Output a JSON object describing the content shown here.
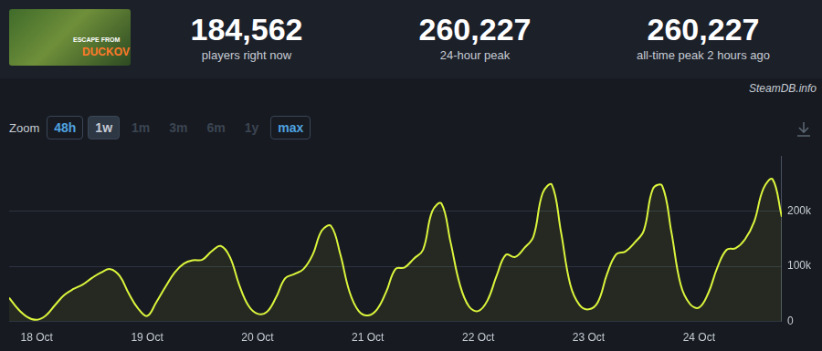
{
  "header": {
    "thumbnail_text": [
      "ESCAPE FROM",
      "DUCKOV"
    ],
    "stats": [
      {
        "value": "184,562",
        "label": "players right now"
      },
      {
        "value": "260,227",
        "label": "24-hour peak"
      },
      {
        "value": "260,227",
        "label": "all-time peak 2 hours ago"
      }
    ],
    "source": "SteamDB.info"
  },
  "zoom": {
    "label": "Zoom",
    "options": [
      "48h",
      "1w",
      "1m",
      "3m",
      "6m",
      "1y",
      "max"
    ],
    "selected": "1w",
    "enabled": [
      "48h",
      "1w",
      "max"
    ]
  },
  "chart_data": {
    "type": "line",
    "color": "#dcf53c",
    "grid": true,
    "categories": [
      null,
      null,
      null,
      "18 Oct",
      null,
      null,
      null,
      null,
      null,
      null,
      null,
      null,
      null,
      null,
      null,
      "19 Oct",
      null,
      null,
      null,
      null,
      null,
      null,
      null,
      null,
      null,
      null,
      null,
      "20 Oct",
      null,
      null,
      null,
      null,
      null,
      null,
      null,
      null,
      null,
      null,
      null,
      "21 Oct",
      null,
      null,
      null,
      null,
      null,
      null,
      null,
      null,
      null,
      null,
      null,
      "22 Oct",
      null,
      null,
      null,
      null,
      null,
      null,
      null,
      null,
      null,
      null,
      null,
      "23 Oct",
      null,
      null,
      null,
      null,
      null,
      null,
      null,
      null,
      null,
      null,
      null,
      "24 Oct",
      null,
      null,
      null,
      null,
      null,
      null,
      null,
      null,
      null
    ],
    "values": [
      43000,
      22000,
      8000,
      3000,
      11000,
      30000,
      48000,
      59000,
      67000,
      79000,
      89000,
      95000,
      83000,
      51000,
      24000,
      10000,
      35000,
      63000,
      89000,
      105000,
      111000,
      112000,
      127000,
      137000,
      117000,
      67000,
      29000,
      14000,
      17000,
      43000,
      78000,
      86000,
      95000,
      121000,
      165000,
      173000,
      122000,
      54000,
      19000,
      11000,
      22000,
      54000,
      95000,
      98000,
      114000,
      130000,
      200000,
      214000,
      143000,
      67000,
      27000,
      19000,
      38000,
      83000,
      121000,
      117000,
      133000,
      154000,
      233000,
      248000,
      162000,
      67000,
      30000,
      22000,
      35000,
      86000,
      122000,
      127000,
      143000,
      165000,
      241000,
      246000,
      162000,
      67000,
      32000,
      25000,
      51000,
      98000,
      130000,
      133000,
      149000,
      181000,
      241000,
      258000,
      190000
    ],
    "ylim": [
      0,
      300000
    ],
    "yticks": [
      0,
      {
        "value": 100000,
        "label": "100k"
      },
      {
        "value": 200000,
        "label": "200k"
      }
    ]
  }
}
